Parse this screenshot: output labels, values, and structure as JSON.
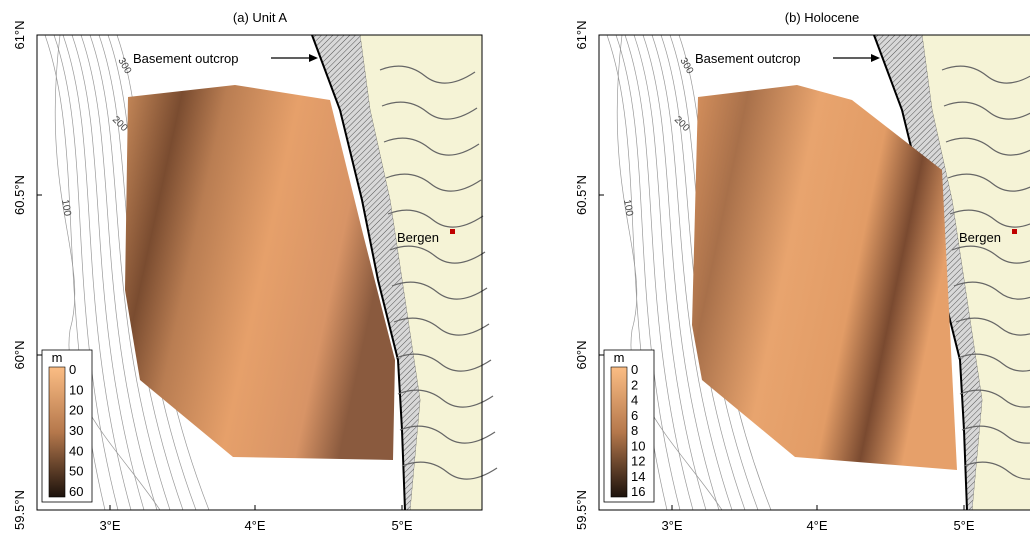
{
  "panels": [
    {
      "title": "(a) Unit A",
      "lon_ticks": [
        "3°E",
        "4°E",
        "5°E"
      ],
      "lat_ticks": [
        "59.5°N",
        "60°N",
        "60.5°N",
        "61°N"
      ],
      "annotation": "Basement outcrop",
      "city": "Bergen",
      "contours": [
        "300",
        "200",
        "100"
      ],
      "colorbar": {
        "unit": "m",
        "ticks": [
          "0",
          "10",
          "20",
          "30",
          "40",
          "50",
          "60"
        ]
      }
    },
    {
      "title": "(b) Holocene",
      "lon_ticks": [
        "3°E",
        "4°E",
        "5°E"
      ],
      "lat_ticks": [
        "59.5°N",
        "60°N",
        "60.5°N",
        "61°N"
      ],
      "annotation": "Basement outcrop",
      "city": "Bergen",
      "contours": [
        "300",
        "200",
        "100"
      ],
      "colorbar": {
        "unit": "m",
        "ticks": [
          "0",
          "2",
          "4",
          "6",
          "8",
          "10",
          "12",
          "14",
          "16"
        ]
      }
    }
  ]
}
